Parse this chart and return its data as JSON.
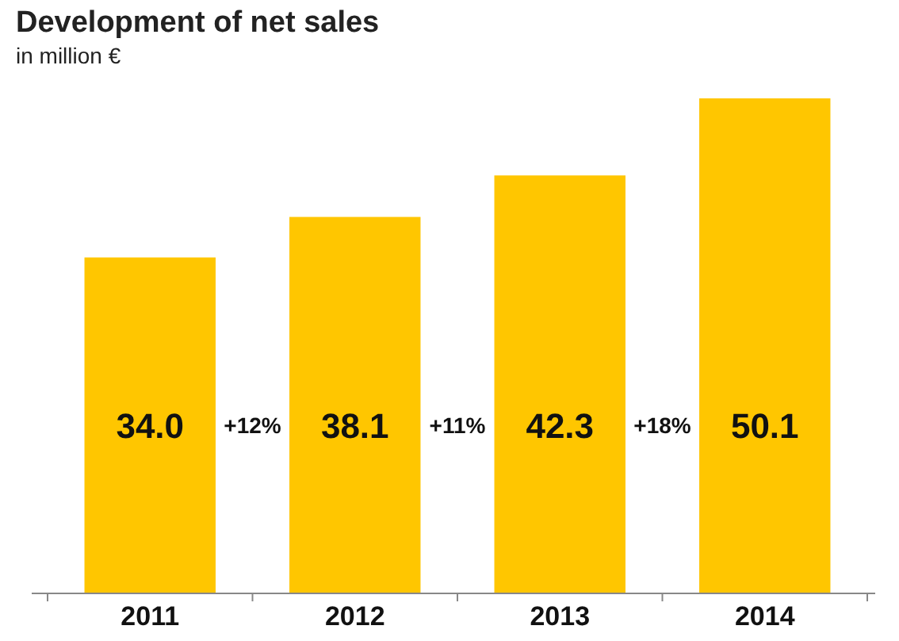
{
  "chart_data": {
    "type": "bar",
    "title": "Development of net sales",
    "subtitle": "in million €",
    "categories": [
      "2011",
      "2012",
      "2013",
      "2014"
    ],
    "values": [
      34.0,
      38.1,
      42.3,
      50.1
    ],
    "color": "#ffc600",
    "value_labels": [
      "34.0",
      "38.1",
      "42.3",
      "50.1"
    ],
    "annotations": [
      "+12%",
      "+11%",
      "+18%"
    ]
  }
}
